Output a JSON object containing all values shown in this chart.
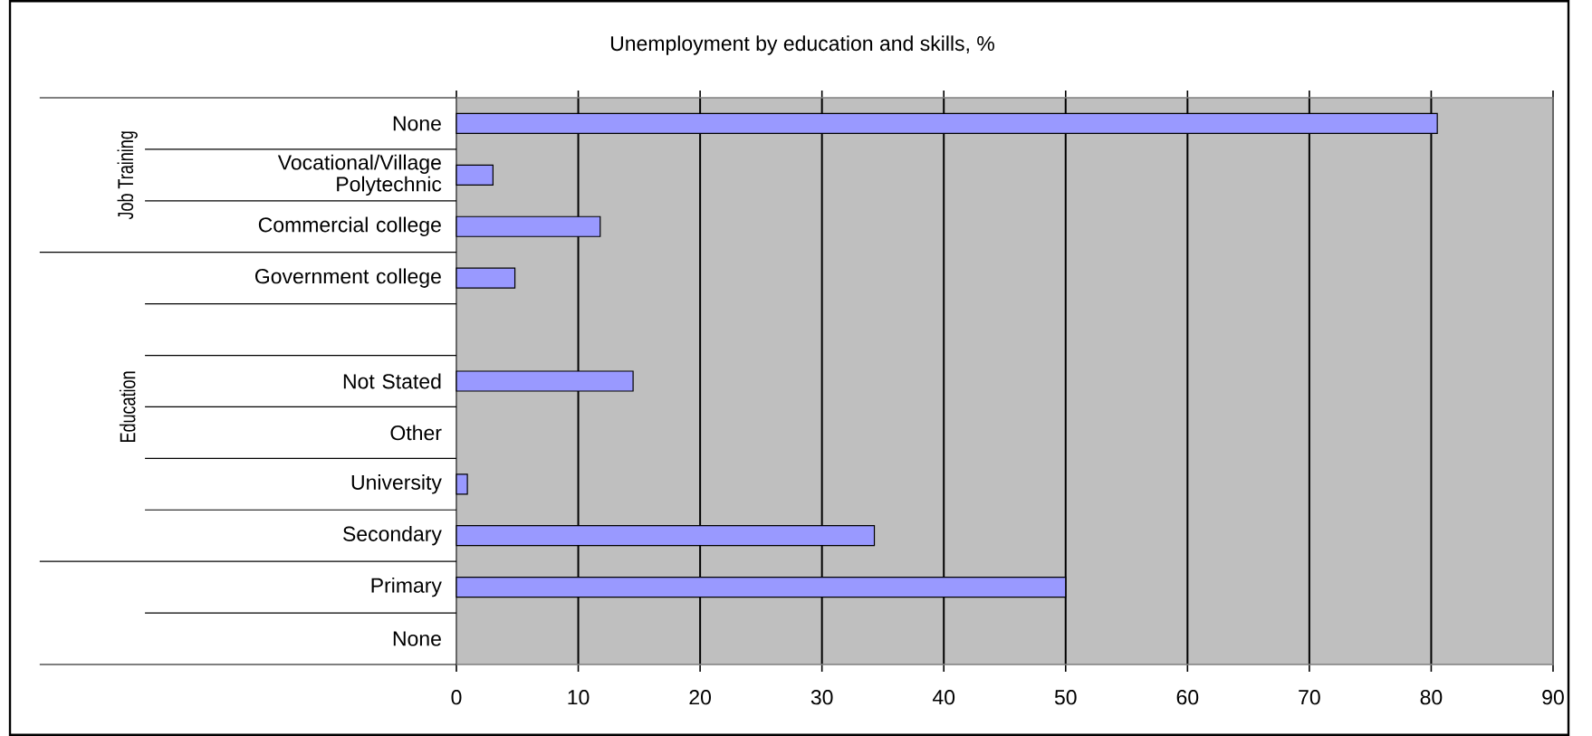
{
  "chart_data": {
    "type": "bar",
    "orientation": "horizontal",
    "title": "Unemployment by education and skills, %",
    "categories": [
      "None",
      "Vocational/Village Polytechnic",
      "Commercial college",
      "Government college",
      null,
      "Not Stated",
      "Other",
      "University",
      "Secondary",
      "Primary",
      "None"
    ],
    "values": [
      80.5,
      3,
      11.8,
      4.8,
      null,
      14.5,
      null,
      0.9,
      34.3,
      50,
      null
    ],
    "color": "#9999ff",
    "xlim": [
      0,
      90
    ],
    "xticks": [
      0,
      10,
      20,
      30,
      40,
      50,
      60,
      70,
      80,
      90
    ],
    "grid": "x",
    "annotations": [
      "Job Training",
      "Education"
    ]
  }
}
